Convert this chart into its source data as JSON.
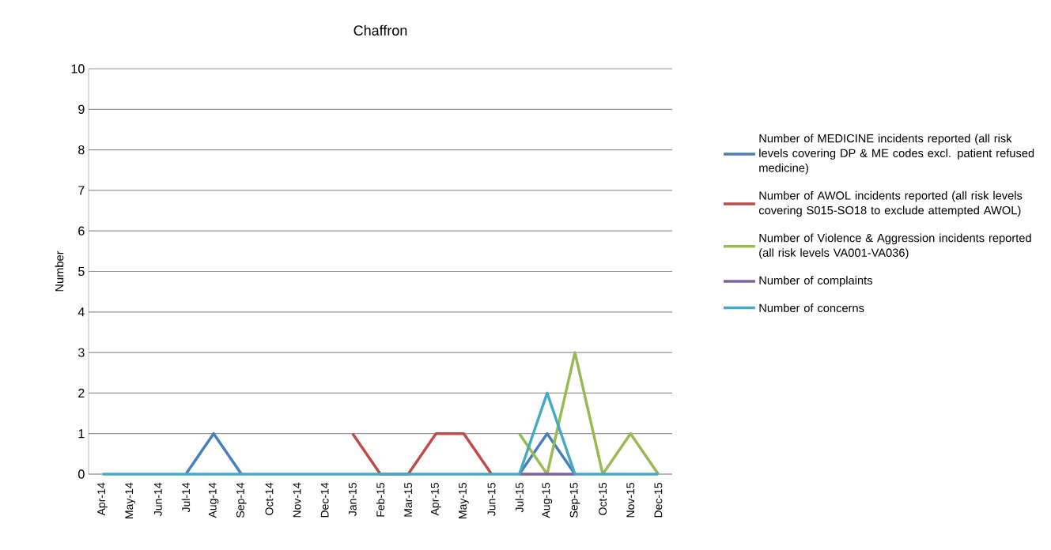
{
  "chart_data": {
    "type": "line",
    "title": "Chaffron",
    "ylabel": "Number",
    "categories": [
      "Apr-14",
      "May-14",
      "Jun-14",
      "Jul-14",
      "Aug-14",
      "Sep-14",
      "Oct-14",
      "Nov-14",
      "Dec-14",
      "Jan-15",
      "Feb-15",
      "Mar-15",
      "Apr-15",
      "May-15",
      "Jun-15",
      "Jul-15",
      "Aug-15",
      "Sep-15",
      "Oct-15",
      "Nov-15",
      "Dec-15"
    ],
    "series": [
      {
        "name": "Number of MEDICINE incidents reported (all risk levels covering DP & ME codes excl. patient refused medicine)",
        "color": "#4a7ebb",
        "values": [
          null,
          null,
          null,
          0,
          1,
          0,
          null,
          null,
          null,
          null,
          null,
          null,
          null,
          null,
          null,
          0,
          1,
          0,
          null,
          null,
          null
        ]
      },
      {
        "name": "Number of AWOL incidents reported (all risk levels covering S015-SO18 to exclude attempted AWOL)",
        "color": "#be4b48",
        "values": [
          null,
          null,
          null,
          null,
          null,
          null,
          null,
          null,
          null,
          1,
          0,
          0,
          1,
          1,
          0,
          null,
          null,
          null,
          null,
          null,
          null
        ]
      },
      {
        "name": "Number of Violence & Aggression incidents reported (all risk levels VA001-VA036)",
        "color": "#98b954",
        "values": [
          null,
          null,
          null,
          null,
          null,
          null,
          null,
          null,
          null,
          null,
          null,
          null,
          null,
          null,
          null,
          1,
          0,
          3,
          0,
          1,
          0
        ]
      },
      {
        "name": "Number of complaints",
        "color": "#7d60a0",
        "values": [
          null,
          null,
          null,
          null,
          null,
          null,
          null,
          null,
          null,
          null,
          null,
          null,
          null,
          null,
          null,
          0,
          0,
          0,
          null,
          null,
          null
        ]
      },
      {
        "name": "Number of concerns",
        "color": "#46aac5",
        "values": [
          0,
          0,
          0,
          0,
          0,
          0,
          0,
          0,
          0,
          0,
          0,
          0,
          0,
          0,
          0,
          0,
          2,
          0,
          0,
          0,
          0
        ]
      }
    ],
    "ylim": [
      0,
      10
    ],
    "yticks": [
      0,
      1,
      2,
      3,
      4,
      5,
      6,
      7,
      8,
      9,
      10
    ],
    "grid": "y",
    "legend": "right",
    "marker": "none",
    "line_style": "solid"
  }
}
